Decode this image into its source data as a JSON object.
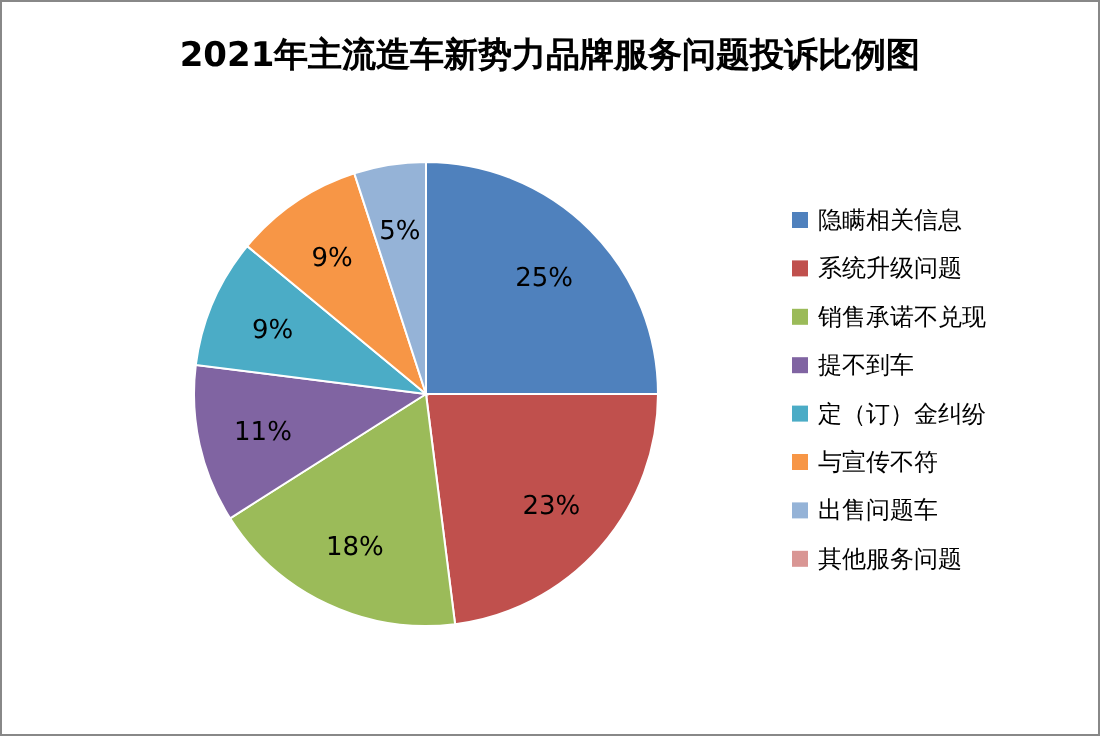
{
  "chart_data": {
    "type": "pie",
    "title": "2021年主流造车新势力品牌服务问题投诉比例图",
    "categories": [
      "隐瞒相关信息",
      "系统升级问题",
      "销售承诺不兑现",
      "提不到车",
      "定（订）金纠纷",
      "与宣传不符",
      "出售问题车",
      "其他服务问题"
    ],
    "values": [
      25,
      23,
      18,
      11,
      9,
      9,
      5,
      0
    ],
    "colors": [
      "#4f81bd",
      "#c0504d",
      "#9bbb59",
      "#8064a2",
      "#4bacc6",
      "#f79646",
      "#95b3d7",
      "#d99694"
    ],
    "value_labels": [
      "25%",
      "23%",
      "18%",
      "11%",
      "9%",
      "9%",
      "5%",
      null
    ],
    "legend": "right"
  }
}
